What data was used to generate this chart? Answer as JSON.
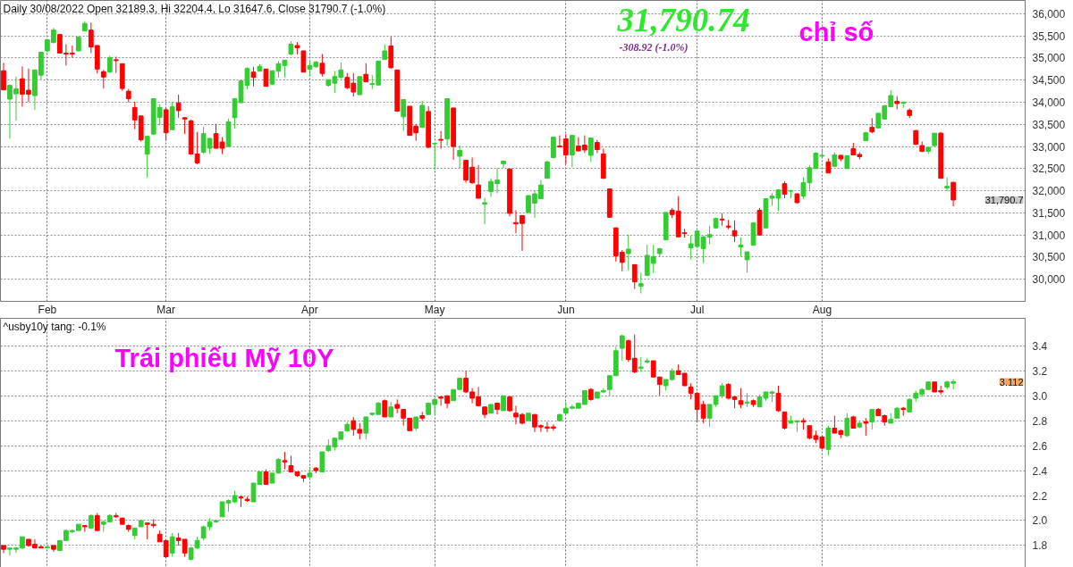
{
  "chart_data": [
    {
      "type": "candlestick",
      "title": "Daily 30/08/2022 Open 32189.3, Hi 32204.4, Lo 31647.6, Close 31790.7 (-1.0%)",
      "categories": [
        null,
        null,
        null,
        null,
        null,
        null,
        null,
        "Feb",
        null,
        null,
        null,
        null,
        null,
        null,
        null,
        null,
        null,
        null,
        null,
        null,
        null,
        null,
        null,
        null,
        null,
        null,
        "Mar",
        null,
        null,
        null,
        null,
        null,
        null,
        null,
        null,
        null,
        null,
        null,
        null,
        null,
        null,
        null,
        null,
        null,
        null,
        null,
        null,
        null,
        null,
        "Apr",
        null,
        null,
        null,
        null,
        null,
        null,
        null,
        null,
        null,
        null,
        null,
        null,
        null,
        null,
        null,
        null,
        null,
        null,
        null,
        "May",
        null,
        null,
        null,
        null,
        null,
        null,
        null,
        null,
        null,
        null,
        null,
        null,
        null,
        null,
        null,
        null,
        null,
        null,
        null,
        null,
        "Jun",
        null,
        null,
        null,
        null,
        null,
        null,
        null,
        null,
        null,
        null,
        null,
        null,
        null,
        null,
        null,
        null,
        null,
        null,
        null,
        null,
        "Jul",
        null,
        null,
        null,
        null,
        null,
        null,
        null,
        null,
        null,
        null,
        null,
        null,
        null,
        null,
        null,
        null,
        null,
        null,
        null,
        "Aug",
        null,
        null,
        null,
        null,
        null,
        null,
        null,
        null,
        null,
        null,
        null,
        null,
        null,
        null,
        null,
        null,
        null,
        null,
        null,
        null,
        null,
        null,
        null,
        null,
        null,
        null,
        null,
        null,
        null,
        null,
        null,
        null
      ],
      "ohlc": [
        [
          34710,
          34890,
          34270,
          34280
        ],
        [
          34070,
          34400,
          33180,
          34380
        ],
        [
          34190,
          34580,
          33580,
          34300
        ],
        [
          34530,
          34810,
          33900,
          34180
        ],
        [
          34270,
          34760,
          34010,
          34180
        ],
        [
          34150,
          34740,
          33830,
          34730
        ],
        [
          34610,
          35140,
          34510,
          35130
        ],
        [
          35160,
          35420,
          35130,
          35410
        ],
        [
          35350,
          35680,
          35330,
          35630
        ],
        [
          35530,
          35540,
          35100,
          35110
        ],
        [
          35110,
          35310,
          34830,
          35090
        ],
        [
          35110,
          35280,
          35010,
          35090
        ],
        [
          35160,
          35490,
          35150,
          35470
        ],
        [
          35610,
          35830,
          35610,
          35780
        ],
        [
          35630,
          35800,
          35110,
          35250
        ],
        [
          35280,
          35290,
          34650,
          34750
        ],
        [
          34690,
          34730,
          34310,
          34570
        ],
        [
          34680,
          35050,
          34680,
          35010
        ],
        [
          34960,
          35030,
          34660,
          34940
        ],
        [
          34870,
          34880,
          34260,
          34310
        ],
        [
          34250,
          34300,
          34000,
          34080
        ],
        [
          33880,
          34010,
          33390,
          33600
        ],
        [
          33690,
          33690,
          33110,
          33150
        ],
        [
          32830,
          33250,
          32300,
          33230
        ],
        [
          33280,
          34080,
          33270,
          34080
        ],
        [
          33660,
          33950,
          33480,
          33880
        ],
        [
          33830,
          33880,
          33130,
          33310
        ],
        [
          33380,
          34010,
          33370,
          33900
        ],
        [
          33980,
          34170,
          33650,
          33810
        ],
        [
          33650,
          33660,
          33280,
          33620
        ],
        [
          33580,
          33610,
          32810,
          32830
        ],
        [
          32830,
          33330,
          32600,
          32630
        ],
        [
          32870,
          33450,
          32830,
          33290
        ],
        [
          32960,
          33200,
          32830,
          33180
        ],
        [
          33290,
          33510,
          32950,
          32960
        ],
        [
          33100,
          33210,
          32830,
          32960
        ],
        [
          33000,
          33630,
          32990,
          33560
        ],
        [
          33650,
          34080,
          33410,
          34080
        ],
        [
          33990,
          34490,
          33980,
          34480
        ],
        [
          34380,
          34790,
          34300,
          34760
        ],
        [
          34680,
          34800,
          34360,
          34560
        ],
        [
          34700,
          34860,
          34700,
          34810
        ],
        [
          34750,
          34750,
          34360,
          34360
        ],
        [
          34410,
          34720,
          34390,
          34710
        ],
        [
          34700,
          34930,
          34560,
          34870
        ],
        [
          34830,
          34960,
          34560,
          34950
        ],
        [
          35090,
          35380,
          35060,
          35310
        ],
        [
          35280,
          35360,
          35080,
          35230
        ],
        [
          35160,
          35160,
          34680,
          34680
        ],
        [
          34750,
          34950,
          34580,
          34830
        ],
        [
          34800,
          34930,
          34780,
          34910
        ],
        [
          34880,
          35090,
          34580,
          34650
        ],
        [
          34380,
          34510,
          34350,
          34510
        ],
        [
          34430,
          34710,
          34210,
          34580
        ],
        [
          34560,
          34900,
          34530,
          34730
        ],
        [
          34560,
          34660,
          34300,
          34330
        ],
        [
          34430,
          34660,
          34130,
          34230
        ],
        [
          34170,
          34580,
          34170,
          34580
        ],
        [
          34630,
          34880,
          34460,
          34460
        ],
        [
          34400,
          34610,
          34300,
          34420
        ],
        [
          34390,
          34930,
          34380,
          34930
        ],
        [
          34970,
          35310,
          34970,
          35160
        ],
        [
          35270,
          35480,
          34750,
          34780
        ],
        [
          34730,
          34730,
          33790,
          33800
        ],
        [
          33670,
          34060,
          33350,
          34060
        ],
        [
          33910,
          33910,
          33250,
          33250
        ],
        [
          33460,
          33510,
          33130,
          33310
        ],
        [
          33430,
          34030,
          33430,
          33930
        ],
        [
          33790,
          33910,
          32970,
          32980
        ],
        [
          33060,
          33080,
          32480,
          33070
        ],
        [
          33160,
          33350,
          32950,
          33140
        ],
        [
          33170,
          34090,
          33020,
          34080
        ],
        [
          33870,
          33870,
          32700,
          33000
        ],
        [
          32780,
          33020,
          32500,
          32910
        ],
        [
          32690,
          32700,
          32180,
          32240
        ],
        [
          32530,
          32750,
          32160,
          32180
        ],
        [
          32130,
          32580,
          31830,
          31830
        ],
        [
          31700,
          31840,
          31240,
          31730
        ],
        [
          31980,
          32280,
          31860,
          32210
        ],
        [
          32160,
          32510,
          31940,
          32240
        ],
        [
          32610,
          32680,
          32510,
          32670
        ],
        [
          32490,
          32490,
          31420,
          31490
        ],
        [
          31280,
          31560,
          31040,
          31250
        ],
        [
          31440,
          31440,
          30640,
          31260
        ],
        [
          31510,
          31900,
          31500,
          31890
        ],
        [
          31720,
          32010,
          31390,
          31930
        ],
        [
          31820,
          32240,
          31820,
          32130
        ],
        [
          32280,
          32680,
          32280,
          32650
        ],
        [
          32750,
          33210,
          32750,
          33210
        ],
        [
          33010,
          33250,
          32980,
          32990
        ],
        [
          33170,
          33280,
          32600,
          32810
        ],
        [
          32810,
          33250,
          32530,
          33250
        ],
        [
          33010,
          33210,
          32890,
          32900
        ],
        [
          33030,
          33250,
          32850,
          32920
        ],
        [
          32800,
          33200,
          32650,
          33190
        ],
        [
          33090,
          33150,
          32850,
          32930
        ],
        [
          32830,
          32950,
          32270,
          32280
        ],
        [
          32040,
          32040,
          31390,
          31400
        ],
        [
          31160,
          31160,
          30400,
          30530
        ],
        [
          30610,
          30660,
          30180,
          30380
        ],
        [
          30580,
          31010,
          30200,
          30680
        ],
        [
          30330,
          30330,
          29780,
          29940
        ],
        [
          29840,
          30150,
          29680,
          29900
        ],
        [
          30090,
          30780,
          30090,
          30540
        ],
        [
          30360,
          30780,
          30140,
          30510
        ],
        [
          30580,
          30710,
          30510,
          30690
        ],
        [
          30890,
          31510,
          30890,
          31510
        ],
        [
          31560,
          31610,
          31380,
          31460
        ],
        [
          31540,
          31880,
          30940,
          30960
        ],
        [
          31050,
          31140,
          30940,
          31030
        ],
        [
          30710,
          30980,
          30440,
          30800
        ],
        [
          30740,
          31090,
          30710,
          31090
        ],
        [
          30690,
          30970,
          30360,
          30960
        ],
        [
          30950,
          31210,
          30790,
          31010
        ],
        [
          31160,
          31390,
          31140,
          31370
        ],
        [
          31360,
          31490,
          31210,
          31340
        ],
        [
          31200,
          31340,
          31130,
          31180
        ],
        [
          31100,
          31330,
          30840,
          30980
        ],
        [
          30730,
          30940,
          30510,
          30770
        ],
        [
          30440,
          30620,
          30150,
          30620
        ],
        [
          30770,
          31290,
          30760,
          31270
        ],
        [
          31560,
          31610,
          30990,
          31000
        ],
        [
          31160,
          31830,
          31160,
          31820
        ],
        [
          31830,
          31940,
          31660,
          31880
        ],
        [
          31830,
          32030,
          31540,
          32020
        ],
        [
          32160,
          32210,
          31830,
          31920
        ],
        [
          31990,
          32020,
          31830,
          32000
        ],
        [
          31930,
          31940,
          31710,
          31730
        ],
        [
          31880,
          32300,
          31810,
          32180
        ],
        [
          32180,
          32580,
          32020,
          32520
        ],
        [
          32500,
          32870,
          32500,
          32850
        ],
        [
          32780,
          32950,
          32730,
          32800
        ],
        [
          32650,
          32730,
          32400,
          32400
        ],
        [
          32550,
          32870,
          32550,
          32810
        ],
        [
          32800,
          32810,
          32670,
          32720
        ],
        [
          32500,
          32800,
          32500,
          32790
        ],
        [
          32950,
          33080,
          32800,
          32810
        ],
        [
          32820,
          32870,
          32710,
          32770
        ],
        [
          33130,
          33330,
          33130,
          33310
        ],
        [
          33430,
          33640,
          33300,
          33330
        ],
        [
          33420,
          33760,
          33410,
          33750
        ],
        [
          33620,
          33940,
          33600,
          33920
        ],
        [
          33900,
          34270,
          33890,
          34150
        ],
        [
          34020,
          34140,
          33840,
          33970
        ],
        [
          33980,
          34020,
          33870,
          34000
        ],
        [
          33820,
          33860,
          33640,
          33700
        ],
        [
          33360,
          33370,
          33030,
          33050
        ],
        [
          33020,
          33110,
          32870,
          32890
        ],
        [
          32890,
          33000,
          32830,
          32980
        ],
        [
          33020,
          33300,
          33000,
          33300
        ],
        [
          33300,
          33330,
          32280,
          32280
        ],
        [
          32060,
          32300,
          31990,
          32100
        ],
        [
          32189.3,
          32204.4,
          31647.6,
          31790.7
        ],
        null,
        null,
        null,
        null,
        null,
        null,
        null,
        null,
        null,
        null,
        null
      ],
      "colors": [
        "#ff0000",
        "#33cc33",
        "#33cc33",
        "#ff0000",
        "#ff0000",
        "#33cc33",
        "#33cc33",
        "#33cc33",
        "#33cc33",
        "#ff0000",
        "#ff0000",
        "#ff0000",
        "#33cc33",
        "#33cc33",
        "#ff0000",
        "#ff0000",
        "#ff0000",
        "#33cc33",
        "#ff0000",
        "#ff0000",
        "#ff0000",
        "#ff0000",
        "#ff0000",
        "#33cc33",
        "#33cc33",
        "#33cc33",
        "#ff0000",
        "#33cc33",
        "#ff0000",
        "#ff0000",
        "#ff0000",
        "#ff0000",
        "#33cc33",
        "#33cc33",
        "#ff0000",
        "#ff0000",
        "#33cc33",
        "#33cc33",
        "#33cc33",
        "#33cc33",
        "#ff0000",
        "#33cc33",
        "#ff0000",
        "#33cc33",
        "#33cc33",
        "#33cc33",
        "#33cc33",
        "#ff0000",
        "#ff0000",
        "#33cc33",
        "#33cc33",
        "#ff0000",
        "#33cc33",
        "#33cc33",
        "#33cc33",
        "#ff0000",
        "#ff0000",
        "#33cc33",
        "#ff0000",
        "#33cc33",
        "#33cc33",
        "#33cc33",
        "#ff0000",
        "#ff0000",
        "#33cc33",
        "#ff0000",
        "#ff0000",
        "#33cc33",
        "#ff0000",
        "#33cc33",
        "#ff0000",
        "#33cc33",
        "#ff0000",
        "#33cc33",
        "#ff0000",
        "#ff0000",
        "#ff0000",
        "#33cc33",
        "#33cc33",
        "#33cc33",
        "#33cc33",
        "#ff0000",
        "#ff0000",
        "#ff0000",
        "#33cc33",
        "#33cc33",
        "#33cc33",
        "#33cc33",
        "#33cc33",
        "#ff0000",
        "#ff0000",
        "#33cc33",
        "#ff0000",
        "#ff0000",
        "#33cc33",
        "#ff0000",
        "#ff0000",
        "#ff0000",
        "#ff0000",
        "#ff0000",
        "#33cc33",
        "#ff0000",
        "#33cc33",
        "#33cc33",
        "#33cc33",
        "#33cc33",
        "#33cc33",
        "#ff0000",
        "#ff0000",
        "#ff0000",
        "#33cc33",
        "#33cc33",
        "#33cc33",
        "#33cc33",
        "#33cc33",
        "#ff0000",
        "#ff0000",
        "#ff0000",
        "#33cc33",
        "#33cc33",
        "#33cc33",
        "#ff0000",
        "#33cc33",
        "#33cc33",
        "#33cc33",
        "#ff0000",
        "#33cc33",
        "#ff0000",
        "#33cc33",
        "#33cc33",
        "#33cc33",
        "#33cc33",
        "#ff0000",
        "#33cc33",
        "#ff0000",
        "#33cc33",
        "#ff0000",
        "#ff0000",
        "#33cc33",
        "#ff0000",
        "#33cc33",
        "#33cc33",
        "#33cc33",
        "#ff0000",
        "#33cc33",
        "#ff0000",
        "#ff0000",
        "#ff0000",
        "#33cc33",
        "#33cc33",
        "#ff0000",
        "#33cc33",
        "#ff0000",
        null,
        null,
        null,
        null,
        null,
        null,
        null,
        null,
        null,
        null,
        null
      ],
      "ylim": [
        29500,
        36300
      ],
      "yticks": [
        {
          "value": 30000,
          "label": "30,000"
        },
        {
          "value": 30500,
          "label": "30,500"
        },
        {
          "value": 31000,
          "label": "31,000"
        },
        {
          "value": 31500,
          "label": "31,500"
        },
        {
          "value": 32000,
          "label": "32,000"
        },
        {
          "value": 32500,
          "label": "32,500"
        },
        {
          "value": 33000,
          "label": "33,000"
        },
        {
          "value": 33500,
          "label": "33,500"
        },
        {
          "value": 34000,
          "label": "34,000"
        },
        {
          "value": 34500,
          "label": "34,500"
        },
        {
          "value": 35000,
          "label": "35,000"
        },
        {
          "value": 35500,
          "label": "35,500"
        },
        {
          "value": 36000,
          "label": "36,000"
        }
      ],
      "grid": true,
      "annotations": [
        "31,790.74",
        "-308.92 (-1.0%)",
        "chỉ số",
        "31,790.7"
      ]
    },
    {
      "type": "candlestick",
      "title": "^usby10y tang: -0.1%",
      "categories": [
        null,
        null,
        null,
        null,
        null,
        null,
        null,
        null,
        null,
        null,
        null,
        null,
        null,
        null,
        null,
        null,
        null,
        null,
        null,
        null,
        null,
        null,
        null,
        null,
        null,
        null,
        null,
        null,
        null,
        null,
        null,
        null,
        null,
        null,
        null,
        null,
        null,
        null,
        null,
        null,
        null,
        null,
        null,
        null,
        null,
        null,
        null,
        null,
        null,
        null,
        null,
        null,
        null,
        null,
        null,
        null,
        null,
        null,
        null,
        null,
        null,
        null,
        null,
        null,
        null,
        null,
        null,
        null,
        null,
        null,
        null,
        null,
        null,
        null,
        null,
        null,
        null,
        null,
        null,
        null,
        null,
        null,
        null,
        null,
        null,
        null,
        null,
        null,
        null,
        null,
        null,
        null,
        null,
        null,
        null,
        null,
        null,
        null,
        null,
        null,
        null,
        null,
        null,
        null,
        null,
        null,
        null,
        null,
        null,
        null,
        null,
        null,
        null,
        null,
        null,
        null,
        null,
        null,
        null,
        null,
        null,
        null,
        null,
        null,
        null,
        null,
        null,
        null,
        null,
        null,
        null,
        null,
        null,
        null,
        null,
        null,
        null,
        null,
        null,
        null,
        null,
        null,
        null,
        null,
        null,
        null,
        null,
        null,
        null,
        null,
        null,
        null,
        null,
        null,
        null,
        null,
        null,
        null,
        null,
        null,
        null,
        null,
        null,
        null
      ],
      "ohlc": [
        [
          1.8,
          1.8,
          1.74,
          1.77
        ],
        [
          1.77,
          1.78,
          1.72,
          1.78
        ],
        [
          1.77,
          1.79,
          1.74,
          1.78
        ],
        [
          1.78,
          1.87,
          1.77,
          1.87
        ],
        [
          1.85,
          1.85,
          1.79,
          1.8
        ],
        [
          1.81,
          1.85,
          1.78,
          1.78
        ],
        [
          1.79,
          1.8,
          1.78,
          1.78
        ],
        [
          1.78,
          1.8,
          1.78,
          1.79
        ],
        [
          1.8,
          1.8,
          1.75,
          1.77
        ],
        [
          1.76,
          1.84,
          1.76,
          1.84
        ],
        [
          1.84,
          1.93,
          1.84,
          1.92
        ],
        [
          1.91,
          1.93,
          1.9,
          1.92
        ],
        [
          1.92,
          1.97,
          1.92,
          1.97
        ],
        [
          1.96,
          1.96,
          1.91,
          1.95
        ],
        [
          1.94,
          2.05,
          1.93,
          2.04
        ],
        [
          2.04,
          2.06,
          1.92,
          1.92
        ],
        [
          1.97,
          2.0,
          1.91,
          1.99
        ],
        [
          1.99,
          2.05,
          1.99,
          2.04
        ],
        [
          2.04,
          2.06,
          2.02,
          2.03
        ],
        [
          2.02,
          2.02,
          1.97,
          1.97
        ],
        [
          1.96,
          1.97,
          1.91,
          1.93
        ],
        [
          1.88,
          1.94,
          1.85,
          1.94
        ],
        [
          1.95,
          2.0,
          1.95,
          2.0
        ],
        [
          1.98,
          1.98,
          1.85,
          1.97
        ],
        [
          1.97,
          2.01,
          1.94,
          1.96
        ],
        [
          1.89,
          1.92,
          1.83,
          1.83
        ],
        [
          1.84,
          1.84,
          1.71,
          1.71
        ],
        [
          1.74,
          1.9,
          1.71,
          1.87
        ],
        [
          1.86,
          1.9,
          1.8,
          1.84
        ],
        [
          1.85,
          1.85,
          1.71,
          1.74
        ],
        [
          1.69,
          1.79,
          1.68,
          1.78
        ],
        [
          1.78,
          1.87,
          1.77,
          1.84
        ],
        [
          1.86,
          1.96,
          1.84,
          1.95
        ],
        [
          1.95,
          2.02,
          1.92,
          1.99
        ],
        [
          1.99,
          2.0,
          1.98,
          2.0
        ],
        [
          2.03,
          2.15,
          2.03,
          2.15
        ],
        [
          2.14,
          2.17,
          2.07,
          2.16
        ],
        [
          2.15,
          2.24,
          2.14,
          2.2
        ],
        [
          2.19,
          2.2,
          2.11,
          2.18
        ],
        [
          2.17,
          2.19,
          2.15,
          2.16
        ],
        [
          2.15,
          2.3,
          2.15,
          2.3
        ],
        [
          2.29,
          2.39,
          2.29,
          2.39
        ],
        [
          2.39,
          2.41,
          2.29,
          2.29
        ],
        [
          2.3,
          2.38,
          2.3,
          2.38
        ],
        [
          2.38,
          2.5,
          2.38,
          2.49
        ],
        [
          2.48,
          2.55,
          2.41,
          2.47
        ],
        [
          2.44,
          2.52,
          2.39,
          2.39
        ],
        [
          2.39,
          2.39,
          2.35,
          2.36
        ],
        [
          2.36,
          2.36,
          2.31,
          2.34
        ],
        [
          2.35,
          2.43,
          2.34,
          2.38
        ],
        [
          2.42,
          2.43,
          2.38,
          2.4
        ],
        [
          2.39,
          2.55,
          2.39,
          2.55
        ],
        [
          2.56,
          2.65,
          2.55,
          2.6
        ],
        [
          2.59,
          2.66,
          2.56,
          2.66
        ],
        [
          2.65,
          2.71,
          2.65,
          2.71
        ],
        [
          2.72,
          2.79,
          2.71,
          2.77
        ],
        [
          2.8,
          2.83,
          2.68,
          2.73
        ],
        [
          2.73,
          2.78,
          2.65,
          2.7
        ],
        [
          2.7,
          2.83,
          2.65,
          2.83
        ],
        [
          2.85,
          2.86,
          2.84,
          2.86
        ],
        [
          2.85,
          2.95,
          2.85,
          2.94
        ],
        [
          2.96,
          2.97,
          2.83,
          2.83
        ],
        [
          2.83,
          2.95,
          2.83,
          2.91
        ],
        [
          2.93,
          2.97,
          2.86,
          2.9
        ],
        [
          2.89,
          2.89,
          2.76,
          2.82
        ],
        [
          2.82,
          2.82,
          2.72,
          2.72
        ],
        [
          2.74,
          2.83,
          2.72,
          2.83
        ],
        [
          2.84,
          2.87,
          2.8,
          2.82
        ],
        [
          2.85,
          2.94,
          2.85,
          2.94
        ],
        [
          2.93,
          2.98,
          2.85,
          2.97
        ],
        [
          2.99,
          2.99,
          2.92,
          2.98
        ],
        [
          3.0,
          3.0,
          2.9,
          2.94
        ],
        [
          2.96,
          3.05,
          2.96,
          3.05
        ],
        [
          3.05,
          3.14,
          3.05,
          3.14
        ],
        [
          3.14,
          3.2,
          3.02,
          3.03
        ],
        [
          3.03,
          3.06,
          2.94,
          2.98
        ],
        [
          2.99,
          3.07,
          2.92,
          2.92
        ],
        [
          2.91,
          2.91,
          2.82,
          2.85
        ],
        [
          2.86,
          2.93,
          2.86,
          2.93
        ],
        [
          2.94,
          2.94,
          2.85,
          2.89
        ],
        [
          2.88,
          3.0,
          2.88,
          3.0
        ],
        [
          2.99,
          3.0,
          2.87,
          2.88
        ],
        [
          2.86,
          2.92,
          2.77,
          2.83
        ],
        [
          2.85,
          2.86,
          2.77,
          2.78
        ],
        [
          2.8,
          2.86,
          2.8,
          2.86
        ],
        [
          2.85,
          2.85,
          2.71,
          2.75
        ],
        [
          2.76,
          2.77,
          2.71,
          2.75
        ],
        [
          2.75,
          2.79,
          2.71,
          2.74
        ],
        [
          2.75,
          2.77,
          2.72,
          2.74
        ],
        [
          2.8,
          2.85,
          2.8,
          2.85
        ],
        [
          2.86,
          2.95,
          2.85,
          2.9
        ],
        [
          2.9,
          2.93,
          2.89,
          2.91
        ],
        [
          2.9,
          2.94,
          2.9,
          2.94
        ],
        [
          2.93,
          3.04,
          2.93,
          3.04
        ],
        [
          3.05,
          3.06,
          2.96,
          2.97
        ],
        [
          2.98,
          3.03,
          2.98,
          3.03
        ],
        [
          3.03,
          3.06,
          3.02,
          3.04
        ],
        [
          3.05,
          3.16,
          3.0,
          3.16
        ],
        [
          3.16,
          3.39,
          3.16,
          3.36
        ],
        [
          3.38,
          3.49,
          3.28,
          3.48
        ],
        [
          3.44,
          3.45,
          3.27,
          3.29
        ],
        [
          3.3,
          3.49,
          3.18,
          3.19
        ],
        [
          3.22,
          3.31,
          3.19,
          3.23
        ],
        [
          3.27,
          3.3,
          3.26,
          3.28
        ],
        [
          3.28,
          3.28,
          3.15,
          3.15
        ],
        [
          3.15,
          3.15,
          3.0,
          3.09
        ],
        [
          3.08,
          3.13,
          3.04,
          3.13
        ],
        [
          3.13,
          3.22,
          3.12,
          3.2
        ],
        [
          3.2,
          3.25,
          3.17,
          3.17
        ],
        [
          3.18,
          3.18,
          3.08,
          3.08
        ],
        [
          3.07,
          3.1,
          2.97,
          3.02
        ],
        [
          3.02,
          3.03,
          2.79,
          2.89
        ],
        [
          2.93,
          2.96,
          2.78,
          2.82
        ],
        [
          2.82,
          2.93,
          2.75,
          2.93
        ],
        [
          2.93,
          3.0,
          2.91,
          3.0
        ],
        [
          3.0,
          3.1,
          2.98,
          3.08
        ],
        [
          3.09,
          3.1,
          2.97,
          2.98
        ],
        [
          2.99,
          3.0,
          2.9,
          2.97
        ],
        [
          2.96,
          3.06,
          2.9,
          2.93
        ],
        [
          2.94,
          3.02,
          2.91,
          2.95
        ],
        [
          2.96,
          2.97,
          2.91,
          2.93
        ],
        [
          2.91,
          3.01,
          2.91,
          2.99
        ],
        [
          2.98,
          3.03,
          2.96,
          3.03
        ],
        [
          3.02,
          3.04,
          2.95,
          3.03
        ],
        [
          3.02,
          3.08,
          2.87,
          2.88
        ],
        [
          2.87,
          2.87,
          2.73,
          2.74
        ],
        [
          2.78,
          2.84,
          2.78,
          2.8
        ],
        [
          2.79,
          2.8,
          2.71,
          2.8
        ],
        [
          2.8,
          2.82,
          2.73,
          2.79
        ],
        [
          2.76,
          2.76,
          2.65,
          2.66
        ],
        [
          2.68,
          2.72,
          2.62,
          2.65
        ],
        [
          2.67,
          2.68,
          2.57,
          2.58
        ],
        [
          2.57,
          2.76,
          2.52,
          2.74
        ],
        [
          2.74,
          2.84,
          2.7,
          2.7
        ],
        [
          2.72,
          2.73,
          2.66,
          2.69
        ],
        [
          2.68,
          2.86,
          2.67,
          2.82
        ],
        [
          2.83,
          2.84,
          2.74,
          2.74
        ],
        [
          2.75,
          2.8,
          2.74,
          2.78
        ],
        [
          2.79,
          2.82,
          2.68,
          2.78
        ],
        [
          2.79,
          2.89,
          2.73,
          2.89
        ],
        [
          2.89,
          2.9,
          2.84,
          2.84
        ],
        [
          2.84,
          2.85,
          2.76,
          2.79
        ],
        [
          2.78,
          2.86,
          2.78,
          2.81
        ],
        [
          2.82,
          2.91,
          2.82,
          2.9
        ],
        [
          2.9,
          2.91,
          2.84,
          2.89
        ],
        [
          2.87,
          2.98,
          2.87,
          2.97
        ],
        [
          2.98,
          3.04,
          2.95,
          3.02
        ],
        [
          3.01,
          3.06,
          2.99,
          3.05
        ],
        [
          3.05,
          3.11,
          3.05,
          3.11
        ],
        [
          3.11,
          3.11,
          3.03,
          3.03
        ],
        [
          3.04,
          3.08,
          3.01,
          3.03
        ],
        [
          3.07,
          3.12,
          3.05,
          3.11
        ],
        [
          3.1,
          3.13,
          3.05,
          3.112
        ],
        null,
        null,
        null,
        null,
        null,
        null,
        null,
        null,
        null,
        null,
        null
      ],
      "colors": [
        "#ff0000",
        "#33cc33",
        "#33cc33",
        "#33cc33",
        "#ff0000",
        "#ff0000",
        "#ff0000",
        "#33cc33",
        "#ff0000",
        "#33cc33",
        "#33cc33",
        "#33cc33",
        "#33cc33",
        "#ff0000",
        "#33cc33",
        "#ff0000",
        "#33cc33",
        "#33cc33",
        "#ff0000",
        "#ff0000",
        "#ff0000",
        "#33cc33",
        "#33cc33",
        "#ff0000",
        "#ff0000",
        "#ff0000",
        "#ff0000",
        "#33cc33",
        "#ff0000",
        "#ff0000",
        "#33cc33",
        "#33cc33",
        "#33cc33",
        "#33cc33",
        "#33cc33",
        "#33cc33",
        "#33cc33",
        "#33cc33",
        "#ff0000",
        "#ff0000",
        "#33cc33",
        "#33cc33",
        "#ff0000",
        "#33cc33",
        "#33cc33",
        "#ff0000",
        "#ff0000",
        "#ff0000",
        "#ff0000",
        "#33cc33",
        "#ff0000",
        "#33cc33",
        "#33cc33",
        "#33cc33",
        "#33cc33",
        "#33cc33",
        "#ff0000",
        "#ff0000",
        "#33cc33",
        "#33cc33",
        "#33cc33",
        "#ff0000",
        "#33cc33",
        "#ff0000",
        "#ff0000",
        "#ff0000",
        "#33cc33",
        "#ff0000",
        "#33cc33",
        "#33cc33",
        "#ff0000",
        "#ff0000",
        "#33cc33",
        "#33cc33",
        "#ff0000",
        "#ff0000",
        "#ff0000",
        "#ff0000",
        "#33cc33",
        "#ff0000",
        "#33cc33",
        "#ff0000",
        "#ff0000",
        "#ff0000",
        "#33cc33",
        "#ff0000",
        "#ff0000",
        "#ff0000",
        "#ff0000",
        "#33cc33",
        "#33cc33",
        "#33cc33",
        "#33cc33",
        "#33cc33",
        "#ff0000",
        "#33cc33",
        "#33cc33",
        "#33cc33",
        "#33cc33",
        "#33cc33",
        "#ff0000",
        "#ff0000",
        "#33cc33",
        "#33cc33",
        "#ff0000",
        "#ff0000",
        "#33cc33",
        "#33cc33",
        "#ff0000",
        "#ff0000",
        "#ff0000",
        "#ff0000",
        "#ff0000",
        "#33cc33",
        "#33cc33",
        "#33cc33",
        "#ff0000",
        "#ff0000",
        "#ff0000",
        "#33cc33",
        "#ff0000",
        "#33cc33",
        "#33cc33",
        "#33cc33",
        "#ff0000",
        "#ff0000",
        "#33cc33",
        "#33cc33",
        "#ff0000",
        "#ff0000",
        "#ff0000",
        "#ff0000",
        "#33cc33",
        "#ff0000",
        "#ff0000",
        "#33cc33",
        "#ff0000",
        "#33cc33",
        "#ff0000",
        "#33cc33",
        "#ff0000",
        "#ff0000",
        "#33cc33",
        "#33cc33",
        "#ff0000",
        "#33cc33",
        "#33cc33",
        "#33cc33",
        "#33cc33",
        "#ff0000",
        "#ff0000",
        "#33cc33",
        "#33cc33",
        null,
        null,
        null,
        null,
        null,
        null,
        null,
        null,
        null,
        null,
        null
      ],
      "ylim": [
        1.61,
        3.62
      ],
      "yticks": [
        {
          "value": 1.8,
          "label": "1.8"
        },
        {
          "value": 2.0,
          "label": "2.0"
        },
        {
          "value": 2.2,
          "label": "2.2"
        },
        {
          "value": 2.4,
          "label": "2.4"
        },
        {
          "value": 2.6,
          "label": "2.6"
        },
        {
          "value": 2.8,
          "label": "2.8"
        },
        {
          "value": 3.0,
          "label": "3.0"
        },
        {
          "value": 3.2,
          "label": "3.2"
        },
        {
          "value": 3.4,
          "label": "3.4"
        }
      ],
      "grid": true,
      "tick_labels": "y",
      "annotations": [
        "Trái phiếu Mỹ 10Y",
        "3.112"
      ]
    }
  ]
}
